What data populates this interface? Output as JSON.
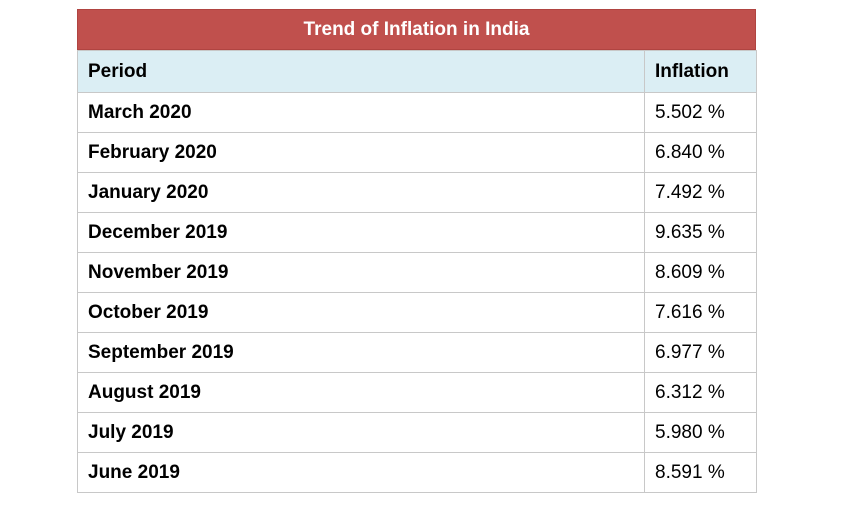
{
  "colors": {
    "title_background": "#c0504d",
    "header_background": "#dbeef4"
  },
  "table": {
    "title": "Trend of Inflation in India",
    "columns": [
      "Period",
      "Inflation"
    ],
    "rows": [
      {
        "period": "March 2020",
        "inflation": "5.502 %"
      },
      {
        "period": "February 2020",
        "inflation": "6.840 %"
      },
      {
        "period": "January 2020",
        "inflation": "7.492 %"
      },
      {
        "period": "December 2019",
        "inflation": "9.635 %"
      },
      {
        "period": "November 2019",
        "inflation": "8.609 %"
      },
      {
        "period": "October 2019",
        "inflation": "7.616 %"
      },
      {
        "period": "September 2019",
        "inflation": "6.977 %"
      },
      {
        "period": "August 2019",
        "inflation": "6.312 %"
      },
      {
        "period": "July 2019",
        "inflation": "5.980 %"
      },
      {
        "period": "June 2019",
        "inflation": "8.591 %"
      }
    ]
  }
}
